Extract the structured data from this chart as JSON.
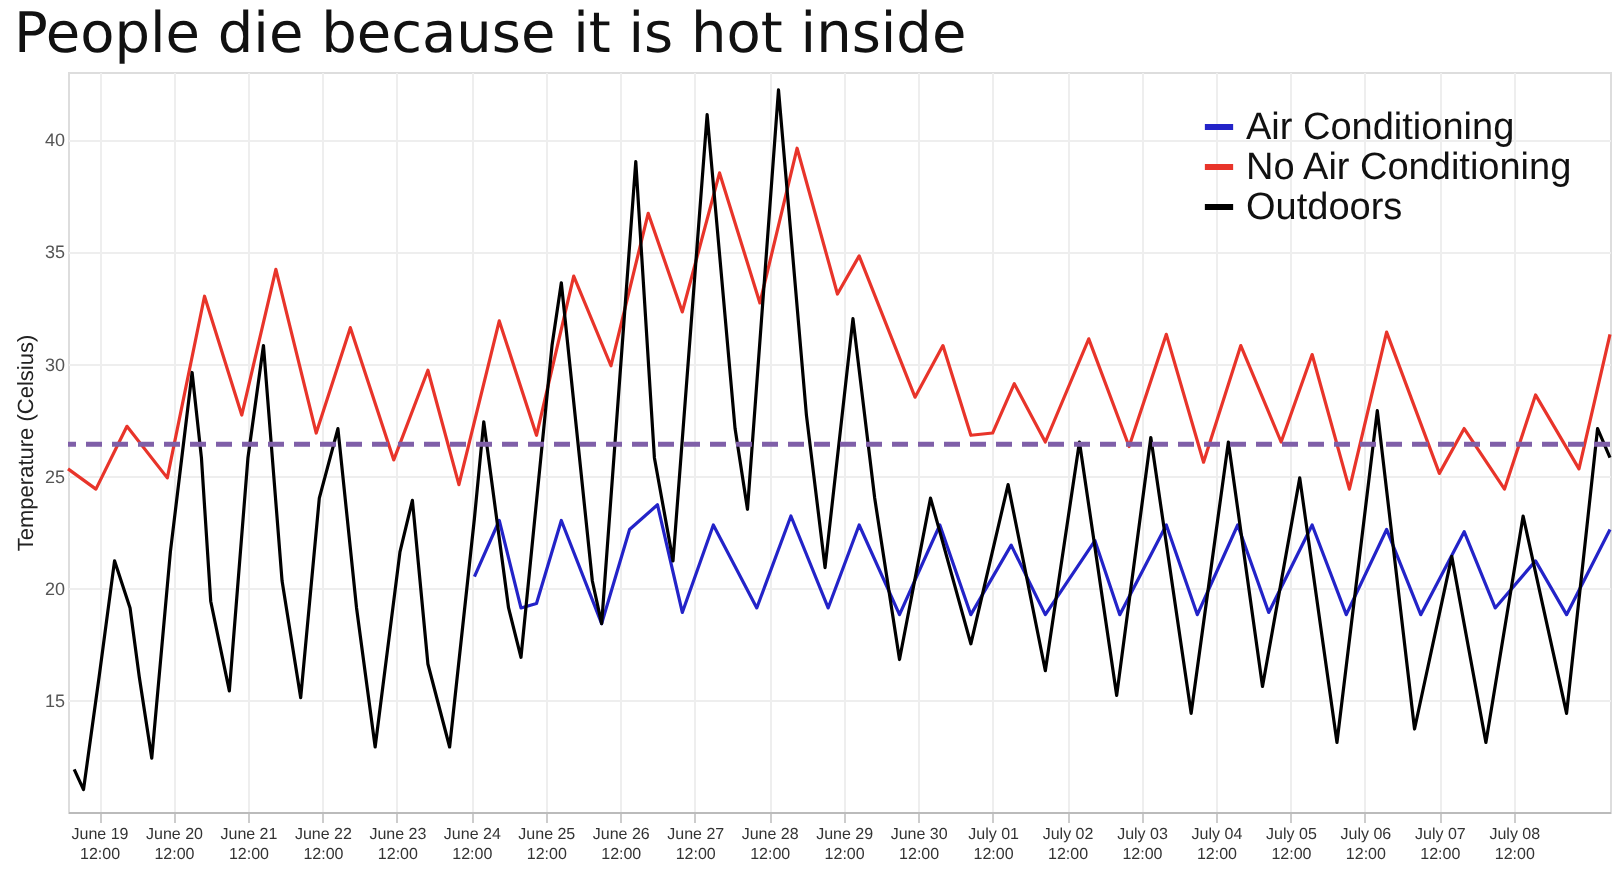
{
  "chart_data": {
    "type": "line",
    "title": "People die because it is hot inside",
    "ylabel": "Temperature (Celsius)",
    "xlim": [
      "--06-19T02:00",
      "--07-09T19:00"
    ],
    "ylim": [
      10,
      43
    ],
    "yticks": [
      15,
      20,
      25,
      30,
      35,
      40
    ],
    "xticks": [
      {
        "value": "--06-19T12:00",
        "label": "June 19 12:00"
      },
      {
        "value": "--06-20T12:00",
        "label": "June 20 12:00"
      },
      {
        "value": "--06-21T12:00",
        "label": "June 21 12:00"
      },
      {
        "value": "--06-22T12:00",
        "label": "June 22 12:00"
      },
      {
        "value": "--06-23T12:00",
        "label": "June 23 12:00"
      },
      {
        "value": "--06-24T12:00",
        "label": "June 24 12:00"
      },
      {
        "value": "--06-25T12:00",
        "label": "June 25 12:00"
      },
      {
        "value": "--06-26T12:00",
        "label": "June 26 12:00"
      },
      {
        "value": "--06-27T12:00",
        "label": "June 27 12:00"
      },
      {
        "value": "--06-28T12:00",
        "label": "June 28 12:00"
      },
      {
        "value": "--06-29T12:00",
        "label": "June 29 12:00"
      },
      {
        "value": "--06-30T12:00",
        "label": "June 30 12:00"
      },
      {
        "value": "--07-01T12:00",
        "label": "July 01 12:00"
      },
      {
        "value": "--07-02T12:00",
        "label": "July 02 12:00"
      },
      {
        "value": "--07-03T12:00",
        "label": "July 03 12:00"
      },
      {
        "value": "--07-04T12:00",
        "label": "July 04 12:00"
      },
      {
        "value": "--07-05T12:00",
        "label": "July 05 12:00"
      },
      {
        "value": "--07-06T12:00",
        "label": "July 06 12:00"
      },
      {
        "value": "--07-07T12:00",
        "label": "July 07 12:00"
      },
      {
        "value": "--07-08T12:00",
        "label": "July 08 12:00"
      }
    ],
    "grid": true,
    "legend": "top right",
    "ref_lines": [
      {
        "axis": "y",
        "value": 26.4,
        "color": "#7f5fa8",
        "line_style": "dashed"
      }
    ],
    "series": [
      {
        "name": "Air Conditioning",
        "color": "#2323c8",
        "x": [
          "--06-24T13:00",
          "--06-24T21:00",
          "--06-25T04:00",
          "--06-25T09:00",
          "--06-25T17:00",
          "--06-26T06:00",
          "--06-26T15:00",
          "--06-27T00:00",
          "--06-27T08:00",
          "--06-27T18:00",
          "--06-28T08:00",
          "--06-28T19:00",
          "--06-29T07:00",
          "--06-29T17:00",
          "--06-30T06:00",
          "--06-30T19:00",
          "--07-01T05:00",
          "--07-01T18:00",
          "--07-02T05:00",
          "--07-02T21:00",
          "--07-03T05:00",
          "--07-03T20:00",
          "--07-04T06:00",
          "--07-04T19:00",
          "--07-05T05:00",
          "--07-05T19:00",
          "--07-06T06:00",
          "--07-06T19:00",
          "--07-07T06:00",
          "--07-07T20:00",
          "--07-08T06:00",
          "--07-08T19:00",
          "--07-09T05:00",
          "--07-09T19:00"
        ],
        "values": [
          20.5,
          23.0,
          19.1,
          19.3,
          23.0,
          18.4,
          22.6,
          23.7,
          18.9,
          22.8,
          19.1,
          23.2,
          19.1,
          22.8,
          18.8,
          22.8,
          18.8,
          21.9,
          18.8,
          22.1,
          18.8,
          22.8,
          18.8,
          22.8,
          18.9,
          22.8,
          18.8,
          22.6,
          18.8,
          22.5,
          19.1,
          21.2,
          18.8,
          22.6
        ]
      },
      {
        "name": "No Air Conditioning",
        "color": "#e8342a",
        "x": [
          "--06-19T02:00",
          "--06-19T11:00",
          "--06-19T21:00",
          "--06-20T10:00",
          "--06-20T22:00",
          "--06-21T10:00",
          "--06-21T21:00",
          "--06-22T10:00",
          "--06-22T21:00",
          "--06-23T11:00",
          "--06-23T22:00",
          "--06-24T08:00",
          "--06-24T21:00",
          "--06-25T09:00",
          "--06-25T21:00",
          "--06-26T09:00",
          "--06-26T21:00",
          "--06-27T08:00",
          "--06-27T20:00",
          "--06-28T09:00",
          "--06-28T21:00",
          "--06-29T10:00",
          "--06-29T17:00",
          "--06-30T11:00",
          "--06-30T20:00",
          "--07-01T05:00",
          "--07-01T12:00",
          "--07-01T19:00",
          "--07-02T05:00",
          "--07-02T19:00",
          "--07-03T08:00",
          "--07-03T20:00",
          "--07-04T08:00",
          "--07-04T20:00",
          "--07-05T09:00",
          "--07-05T19:00",
          "--07-06T07:00",
          "--07-06T19:00",
          "--07-07T12:00",
          "--07-07T20:00",
          "--07-08T09:00",
          "--07-08T19:00",
          "--07-09T09:00",
          "--07-09T19:00"
        ],
        "values": [
          25.3,
          24.4,
          27.2,
          24.9,
          33.0,
          27.7,
          34.2,
          26.9,
          31.6,
          25.7,
          29.7,
          24.6,
          31.9,
          26.8,
          33.9,
          29.9,
          36.7,
          32.3,
          38.5,
          32.7,
          39.6,
          33.1,
          34.8,
          28.5,
          30.8,
          26.8,
          26.9,
          29.1,
          26.5,
          31.1,
          26.3,
          31.3,
          25.6,
          30.8,
          26.5,
          30.4,
          24.4,
          31.4,
          25.1,
          27.1,
          24.4,
          28.6,
          25.3,
          31.3
        ]
      },
      {
        "name": "Outdoors",
        "color": "#000000",
        "x": [
          "--06-19T04:00",
          "--06-19T07:00",
          "--06-19T12:00",
          "--06-19T17:00",
          "--06-19T22:00",
          "--06-20T01:00",
          "--06-20T05:00",
          "--06-20T11:00",
          "--06-20T18:00",
          "--06-20T21:00",
          "--06-21T00:00",
          "--06-21T06:00",
          "--06-21T12:00",
          "--06-21T17:00",
          "--06-21T23:00",
          "--06-22T05:00",
          "--06-22T11:00",
          "--06-22T17:00",
          "--06-22T23:00",
          "--06-23T05:00",
          "--06-23T13:00",
          "--06-23T17:00",
          "--06-23T22:00",
          "--06-24T05:00",
          "--06-24T13:00",
          "--06-24T16:00",
          "--06-25T00:00",
          "--06-25T04:00",
          "--06-25T14:00",
          "--06-25T17:00",
          "--06-26T03:00",
          "--06-26T06:00",
          "--06-26T17:00",
          "--06-26T23:00",
          "--06-27T05:00",
          "--06-27T16:00",
          "--06-28T01:00",
          "--06-28T05:00",
          "--06-28T15:00",
          "--06-29T00:00",
          "--06-29T06:00",
          "--06-29T15:00",
          "--06-29T22:00",
          "--06-30T06:00",
          "--06-30T16:00",
          "--07-01T05:00",
          "--07-01T17:00",
          "--07-02T05:00",
          "--07-02T16:00",
          "--07-03T04:00",
          "--07-03T15:00",
          "--07-04T04:00",
          "--07-04T16:00",
          "--07-05T03:00",
          "--07-05T15:00",
          "--07-06T03:00",
          "--07-06T16:00",
          "--07-07T04:00",
          "--07-07T16:00",
          "--07-08T03:00",
          "--07-08T15:00",
          "--07-09T05:00",
          "--07-09T15:00",
          "--07-09T19:00"
        ],
        "values": [
          11.9,
          11.0,
          16.0,
          21.2,
          19.1,
          16.0,
          12.4,
          21.6,
          29.6,
          25.8,
          19.4,
          15.4,
          25.8,
          30.8,
          20.3,
          15.1,
          24.0,
          27.1,
          19.1,
          12.9,
          21.6,
          23.9,
          16.6,
          12.9,
          23.1,
          27.4,
          19.1,
          16.9,
          30.8,
          33.6,
          20.3,
          18.4,
          39.0,
          25.8,
          21.2,
          41.1,
          27.1,
          23.5,
          42.2,
          27.7,
          20.9,
          32.0,
          24.0,
          16.8,
          24.0,
          17.5,
          24.6,
          16.3,
          26.5,
          15.2,
          26.7,
          14.4,
          26.5,
          15.6,
          24.9,
          13.1,
          27.9,
          13.7,
          21.4,
          13.1,
          23.2,
          14.4,
          27.1,
          25.8
        ]
      }
    ]
  }
}
